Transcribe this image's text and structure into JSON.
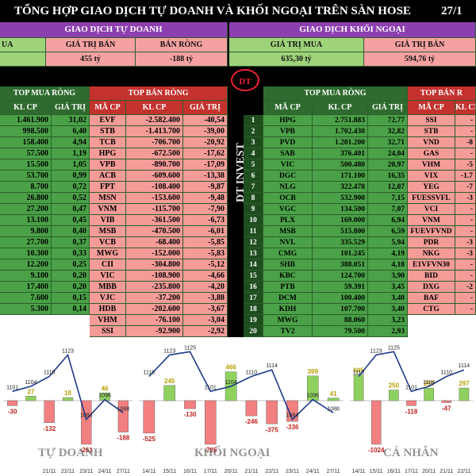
{
  "title": {
    "main": "TỔNG HỢP GIAO DỊCH TỰ DOANH VÀ KHỐI NGOẠI TRÊN SÀN HOSE",
    "date": "27/1"
  },
  "self_trading": {
    "section_label": "GIAO DỊCH TỰ DOANH",
    "buy_label": "UA",
    "sell_label": "GIÁ TRỊ BÁN",
    "net_label": "BÁN RÒNG",
    "sell_value": "455 tỷ",
    "net_value": "-188 tỷ",
    "top_buy_label": "TOP MUA RÒNG",
    "top_sell_label": "TOP BÁN RÒNG",
    "col_vol": "KL CP",
    "col_val": "GIÁ TRỊ",
    "col_code": "MÃ CP",
    "buy_rows": [
      {
        "vol": "1.461.900",
        "val": "31,02"
      },
      {
        "vol": "998.500",
        "val": "6,40"
      },
      {
        "vol": "158.400",
        "val": "4,94"
      },
      {
        "vol": "57.500",
        "val": "1,19"
      },
      {
        "vol": "15.500",
        "val": "1,05"
      },
      {
        "vol": "53.700",
        "val": "0,99"
      },
      {
        "vol": "8.700",
        "val": "0,72"
      },
      {
        "vol": "26.800",
        "val": "0,52"
      },
      {
        "vol": "27.200",
        "val": "0,47"
      },
      {
        "vol": "13.100",
        "val": "0,45"
      },
      {
        "vol": "9.800",
        "val": "0,40"
      },
      {
        "vol": "27.700",
        "val": "0,37"
      },
      {
        "vol": "10.300",
        "val": "0,33"
      },
      {
        "vol": "12.200",
        "val": "0,25"
      },
      {
        "vol": "9.100",
        "val": "0,20"
      },
      {
        "vol": "17.400",
        "val": "0,20"
      },
      {
        "vol": "7.600",
        "val": "0,15"
      },
      {
        "vol": "5.300",
        "val": "0,14"
      }
    ],
    "sell_rows": [
      {
        "code": "EVF",
        "vol": "-2.582.400",
        "val": "-40,54"
      },
      {
        "code": "STB",
        "vol": "-1.413.700",
        "val": "-39,00"
      },
      {
        "code": "TCB",
        "vol": "-706.700",
        "val": "-20,92"
      },
      {
        "code": "HPG",
        "vol": "-672.500",
        "val": "-17,62"
      },
      {
        "code": "VPB",
        "vol": "-890.700",
        "val": "-17,09"
      },
      {
        "code": "ACB",
        "vol": "-609.600",
        "val": "-13,38"
      },
      {
        "code": "FPT",
        "vol": "-108.400",
        "val": "-9,87"
      },
      {
        "code": "MSN",
        "vol": "-153.600",
        "val": "-9,48"
      },
      {
        "code": "VNM",
        "vol": "-115.700",
        "val": "-7,90"
      },
      {
        "code": "VIB",
        "vol": "-361.500",
        "val": "-6,73"
      },
      {
        "code": "MSB",
        "vol": "-470.500",
        "val": "-6,01"
      },
      {
        "code": "VCB",
        "vol": "-68.400",
        "val": "-5,85"
      },
      {
        "code": "MWG",
        "vol": "-152.000",
        "val": "-5,83"
      },
      {
        "code": "CII",
        "vol": "-304.800",
        "val": "-5,12"
      },
      {
        "code": "VIC",
        "vol": "-108.900",
        "val": "-4,66"
      },
      {
        "code": "MBB",
        "vol": "-235.800",
        "val": "-4,20"
      },
      {
        "code": "VJC",
        "vol": "-37.200",
        "val": "-3,88"
      },
      {
        "code": "HDB",
        "vol": "-202.600",
        "val": "-3,67"
      },
      {
        "code": "VHM",
        "vol": "-76.100",
        "val": "-3,04"
      },
      {
        "code": "SSI",
        "vol": "-92.900",
        "val": "-2,92"
      }
    ]
  },
  "foreign": {
    "section_label": "GIAO DỊCH KHỐI NGOẠI",
    "buy_label": "GIÁ TRỊ MUA",
    "sell_label": "GIÁ TRỊ BÁN",
    "buy_value": "635,30 tỷ",
    "sell_value": "594,76 tỷ",
    "logo_text": "DT",
    "brand_text": "DT INVEST",
    "top_buy_label": "TOP MUA RÒNG",
    "top_sell_label": "TOP BÁN R",
    "col_code": "MÃ CP",
    "col_vol": "KL CP",
    "col_val": "GIÁ TRỊ",
    "buy_rows": [
      {
        "no": "1",
        "code": "HPG",
        "vol": "2.751.883",
        "val": "72,77"
      },
      {
        "no": "2",
        "code": "VPB",
        "vol": "1.702.430",
        "val": "32,82"
      },
      {
        "no": "3",
        "code": "PVD",
        "vol": "1.201.200",
        "val": "32,71"
      },
      {
        "no": "4",
        "code": "SAB",
        "vol": "376.401",
        "val": "24,04"
      },
      {
        "no": "5",
        "code": "VIC",
        "vol": "500.480",
        "val": "20,97"
      },
      {
        "no": "6",
        "code": "DGC",
        "vol": "171.100",
        "val": "16,35"
      },
      {
        "no": "7",
        "code": "NLG",
        "vol": "322.478",
        "val": "12,07"
      },
      {
        "no": "8",
        "code": "OCB",
        "vol": "532.900",
        "val": "7,15"
      },
      {
        "no": "9",
        "code": "VGC",
        "vol": "134.500",
        "val": "7,07"
      },
      {
        "no": "10",
        "code": "PLX",
        "vol": "169.000",
        "val": "6,94"
      },
      {
        "no": "11",
        "code": "MSB",
        "vol": "515.800",
        "val": "6,59"
      },
      {
        "no": "12",
        "code": "NVL",
        "vol": "335.529",
        "val": "5,94"
      },
      {
        "no": "13",
        "code": "CMG",
        "vol": "101.245",
        "val": "4,19"
      },
      {
        "no": "14",
        "code": "SHB",
        "vol": "388.051",
        "val": "4,18"
      },
      {
        "no": "15",
        "code": "KBC",
        "vol": "124.700",
        "val": "3,90"
      },
      {
        "no": "16",
        "code": "PTB",
        "vol": "59.391",
        "val": "3,45"
      },
      {
        "no": "17",
        "code": "DCM",
        "vol": "100.400",
        "val": "3,40"
      },
      {
        "no": "18",
        "code": "KDH",
        "vol": "107.700",
        "val": "3,40"
      },
      {
        "no": "19",
        "code": "MWG",
        "vol": "88.060",
        "val": "3,23"
      },
      {
        "no": "20",
        "code": "TV2",
        "vol": "79.500",
        "val": "2,93"
      }
    ],
    "sell_rows": [
      {
        "code": "SSI",
        "vol": "-"
      },
      {
        "code": "STB",
        "vol": "-"
      },
      {
        "code": "VND",
        "vol": "-8"
      },
      {
        "code": "GAS",
        "vol": "-"
      },
      {
        "code": "VHM",
        "vol": "-5"
      },
      {
        "code": "VIX",
        "vol": "-1.7"
      },
      {
        "code": "YEG",
        "vol": "-7"
      },
      {
        "code": "FUESSVFL",
        "vol": "-3"
      },
      {
        "code": "VCI",
        "vol": "-"
      },
      {
        "code": "VNM",
        "vol": "-"
      },
      {
        "code": "FUEVFVND",
        "vol": "-"
      },
      {
        "code": "PDR",
        "vol": "-3"
      },
      {
        "code": "NKG",
        "vol": "-3"
      },
      {
        "code": "E1VFVN30",
        "vol": "-"
      },
      {
        "code": "BID",
        "vol": "-"
      },
      {
        "code": "DXG",
        "vol": "-2"
      },
      {
        "code": "BAF",
        "vol": "-"
      },
      {
        "code": "CTG",
        "vol": "-"
      }
    ]
  },
  "chart_data": [
    {
      "type": "bar",
      "title": "TỰ DOANH",
      "categories": [
        "",
        "",
        "21/11",
        "22/11",
        "23/11",
        "24/11",
        "27/11"
      ],
      "values": [
        -30,
        27,
        -132,
        18,
        -261,
        46,
        -188
      ],
      "line_values": [
        1101,
        1104,
        1110,
        1123,
        1084,
        1096,
        1088
      ]
    },
    {
      "type": "bar",
      "title": "KHỐI NGOẠI",
      "categories": [
        "14/11",
        "15/11",
        "16/11",
        "17/11",
        "20/11",
        "21/11",
        "22/11",
        "23/11",
        "24/11",
        "27/11"
      ],
      "values": [
        -525,
        245,
        -130,
        -705,
        466,
        -246,
        -375,
        -336,
        399,
        41
      ],
      "line_values": [
        1110,
        1123,
        1125,
        1101,
        1104,
        1110,
        1114,
        1084,
        1096,
        1088
      ]
    },
    {
      "type": "bar",
      "title": "CÁ NHÂN",
      "categories": [
        "14/11",
        "15/11",
        "16/11",
        "17/11",
        "20/11",
        "21/11",
        "22/11"
      ],
      "values": [
        605,
        -1024,
        250,
        -118,
        295,
        -47,
        297
      ],
      "line_values": [
        1110,
        1123,
        1125,
        1101,
        1104,
        1110,
        1114
      ]
    }
  ]
}
